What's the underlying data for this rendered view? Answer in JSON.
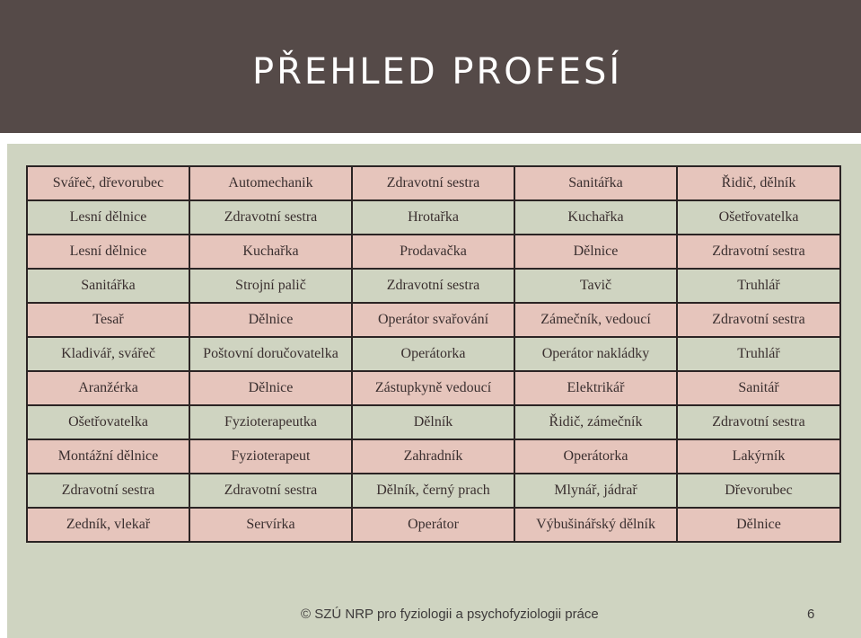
{
  "slide": {
    "title": "PŘEHLED PROFESÍ",
    "footer": "© SZÚ NRP pro fyziologii a psychofyziologii práce",
    "page_number": "6"
  },
  "colors": {
    "title_bar": "#554a48",
    "content_bg": "#cfd4c1",
    "row_pink": "#e6c5bc",
    "row_sage": "#cfd4c1",
    "grid_border": "#2b2424"
  },
  "table": {
    "rows": [
      [
        "Svářeč, dřevorubec",
        "Automechanik",
        "Zdravotní sestra",
        "Sanitářka",
        "Řidič, dělník"
      ],
      [
        "Lesní dělnice",
        "Zdravotní sestra",
        "Hrotařka",
        "Kuchařka",
        "Ošetřovatelka"
      ],
      [
        "Lesní dělnice",
        "Kuchařka",
        "Prodavačka",
        "Dělnice",
        "Zdravotní sestra"
      ],
      [
        "Sanitářka",
        "Strojní palič",
        "Zdravotní sestra",
        "Tavič",
        "Truhlář"
      ],
      [
        "Tesař",
        "Dělnice",
        "Operátor svařování",
        "Zámečník, vedoucí",
        "Zdravotní sestra"
      ],
      [
        "Kladivář, svářeč",
        "Poštovní doručovatelka",
        "Operátorka",
        "Operátor nakládky",
        "Truhlář"
      ],
      [
        "Aranžérka",
        "Dělnice",
        "Zástupkyně vedoucí",
        "Elektrikář",
        "Sanitář"
      ],
      [
        "Ošetřovatelka",
        "Fyzioterapeutka",
        "Dělník",
        "Řidič, zámečník",
        "Zdravotní sestra"
      ],
      [
        "Montážní dělnice",
        "Fyzioterapeut",
        "Zahradník",
        "Operátorka",
        "Lakýrník"
      ],
      [
        "Zdravotní sestra",
        "Zdravotní sestra",
        "Dělník, černý prach",
        "Mlynář, jádrař",
        "Dřevorubec"
      ],
      [
        "Zedník, vlekař",
        "Servírka",
        "Operátor",
        "Výbušinářský dělník",
        "Dělnice"
      ]
    ]
  }
}
